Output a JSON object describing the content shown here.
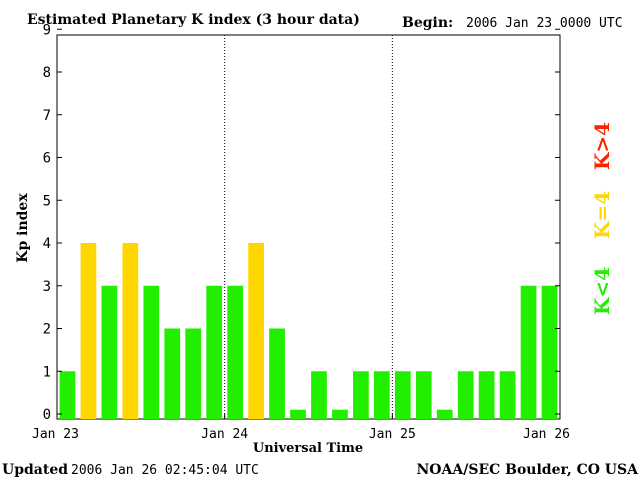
{
  "header": {
    "title": "Estimated Planetary K index (3 hour data)",
    "begin_label": "Begin:",
    "begin_value": "2006 Jan 23 0000 UTC"
  },
  "footer": {
    "updated_label": "Updated",
    "updated_value": "2006 Jan 26 02:45:04 UTC",
    "source": "NOAA/SEC Boulder, CO USA"
  },
  "legend": [
    {
      "label": "K>4",
      "color": "#ff2200"
    },
    {
      "label": "K=4",
      "color": "#ffd700"
    },
    {
      "label": "K<4",
      "color": "#22ee00"
    }
  ],
  "chart_data": {
    "type": "bar",
    "title": "Estimated Planetary K index (3 hour data)",
    "xlabel": "Universal Time",
    "ylabel": "Kp index",
    "ylim": [
      0,
      9
    ],
    "yticks": [
      0,
      1,
      2,
      3,
      4,
      5,
      6,
      7,
      8,
      9
    ],
    "xticks": [
      "Jan 23",
      "Jan 24",
      "Jan 25",
      "Jan 26"
    ],
    "day_separators": [
      "Jan 24",
      "Jan 25"
    ],
    "interval_hours": 3,
    "values": [
      1,
      4,
      3,
      4,
      3,
      2,
      2,
      3,
      3,
      4,
      2,
      0,
      1,
      0,
      1,
      1,
      1,
      1,
      0,
      1,
      1,
      1,
      3,
      3
    ],
    "colors": {
      "below": "#22ee00",
      "equal": "#ffd700",
      "above": "#ff2200"
    },
    "zero_bar_value": 0.1
  }
}
